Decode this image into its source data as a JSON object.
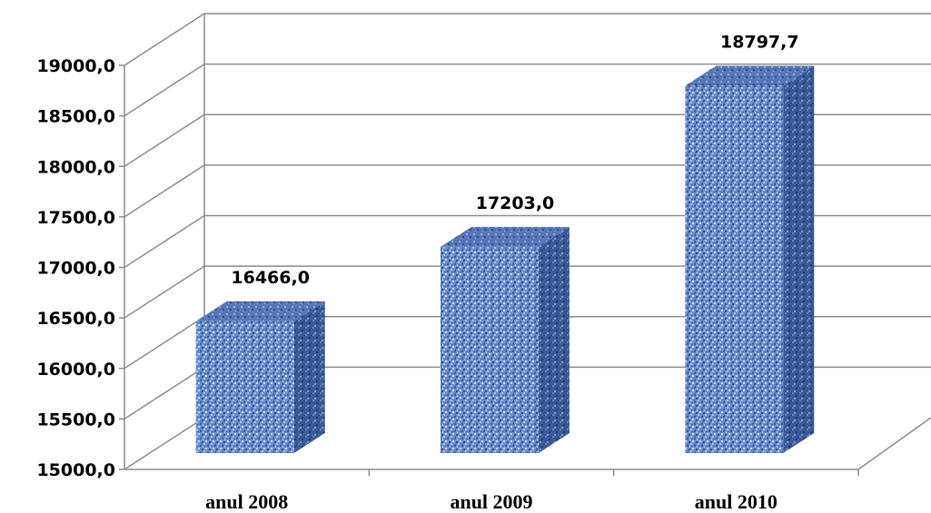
{
  "chart_data": {
    "type": "bar",
    "categories": [
      "anul 2008",
      "anul 2009",
      "anul 2010"
    ],
    "values": [
      16466.0,
      17203.0,
      18797.7
    ],
    "value_labels": [
      "16466,0",
      "17203,0",
      "18797,7"
    ],
    "y_ticks": [
      15000,
      15500,
      16000,
      16500,
      17000,
      17500,
      18000,
      18500,
      19000
    ],
    "y_tick_labels": [
      "15000,0",
      "15500,0",
      "16000,0",
      "16500,0",
      "17000,0",
      "17500,0",
      "18000,0",
      "18500,0",
      "19000,0"
    ],
    "ylim": [
      15000,
      19000
    ],
    "title": "",
    "xlabel": "",
    "ylabel": "",
    "grid": true,
    "legend": "none",
    "style": "3d-column",
    "colors": {
      "bar_front": "#6b8cc9",
      "bar_side": "#3a5a9a",
      "bar_top": "#5577b8",
      "grid": "#8c8c8c"
    }
  }
}
